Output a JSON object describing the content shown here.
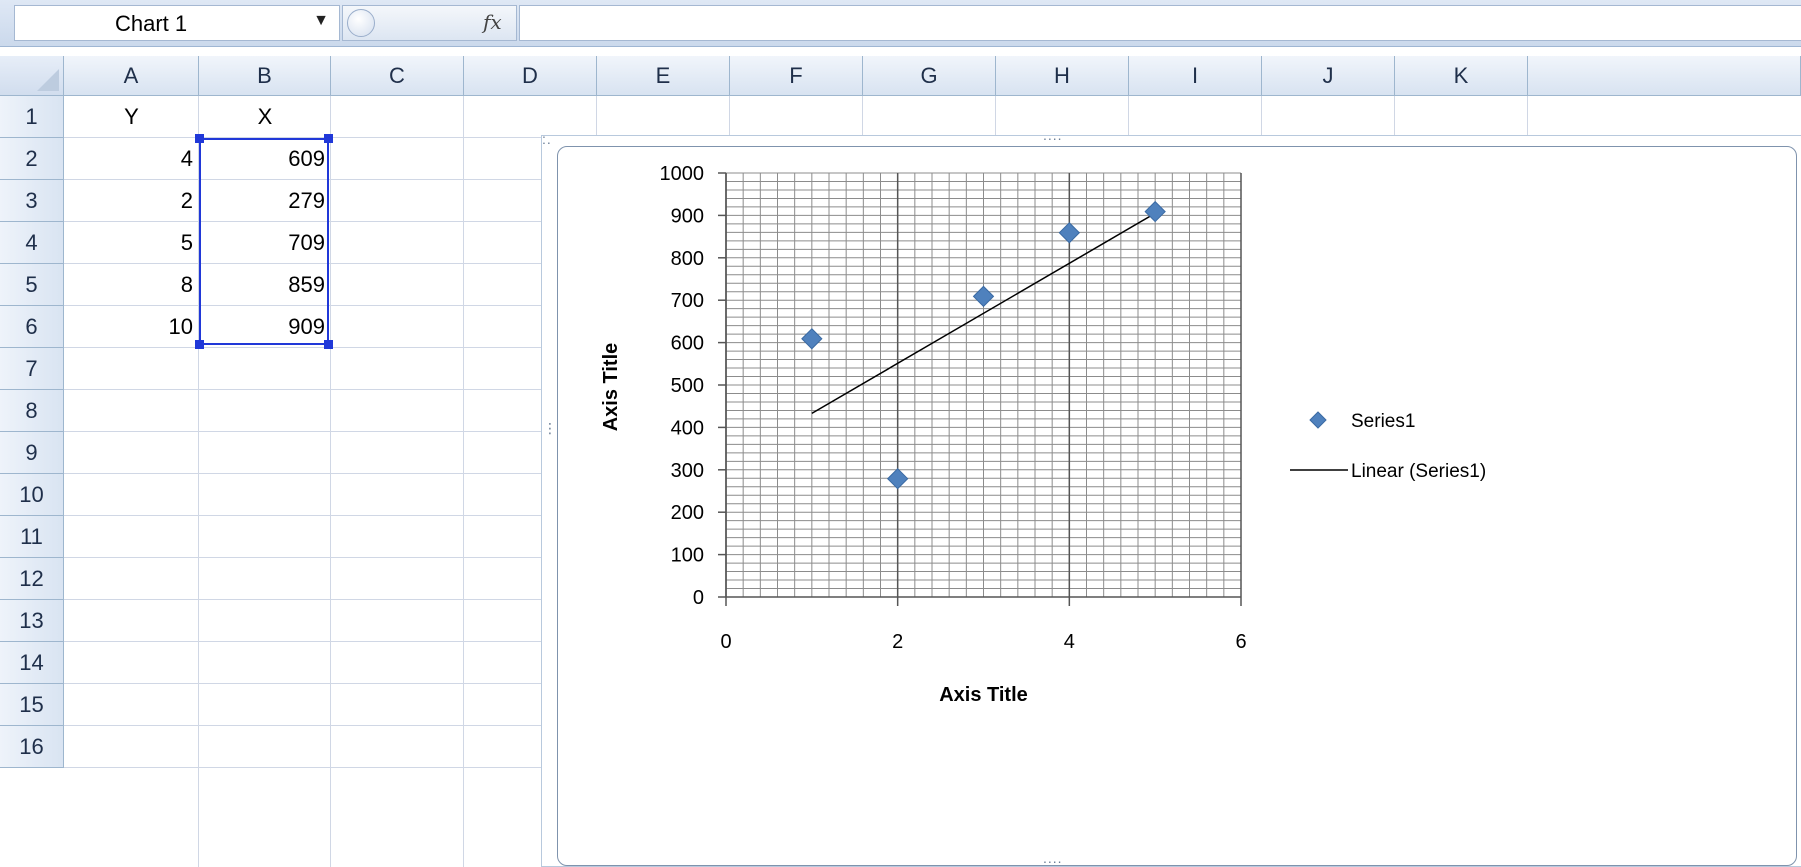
{
  "name_box": {
    "value": "Chart 1"
  },
  "formula": {
    "fx_label": "fx",
    "value": ""
  },
  "columns": [
    "A",
    "B",
    "C",
    "D",
    "E",
    "F",
    "G",
    "H",
    "I",
    "J",
    "K"
  ],
  "rows": [
    "1",
    "2",
    "3",
    "4",
    "5",
    "6",
    "7",
    "8",
    "9",
    "10",
    "11",
    "12",
    "13",
    "14",
    "15",
    "16"
  ],
  "cells": {
    "A1": "Y",
    "B1": "X",
    "A2": "4",
    "B2": "609",
    "A3": "2",
    "B3": "279",
    "A4": "5",
    "B4": "709",
    "A5": "8",
    "B5": "859",
    "A6": "10",
    "B6": "909"
  },
  "chart_data": {
    "type": "scatter",
    "xlabel": "Axis Title",
    "ylabel": "Axis Title",
    "xlim": [
      0,
      6
    ],
    "ylim": [
      0,
      1000
    ],
    "x_ticks": [
      0,
      2,
      4,
      6
    ],
    "y_ticks": [
      0,
      100,
      200,
      300,
      400,
      500,
      600,
      700,
      800,
      900,
      1000
    ],
    "grid": true,
    "legend_position": "right",
    "series": [
      {
        "name": "Series1",
        "x": [
          1,
          2,
          3,
          4,
          5
        ],
        "y": [
          609,
          279,
          709,
          859,
          909
        ],
        "color": "#4f81bd",
        "marker": "diamond"
      }
    ],
    "trendline": {
      "name": "Linear (Series1)",
      "type": "linear",
      "from": [
        1,
        433
      ],
      "to": [
        5,
        905
      ],
      "color": "#000000"
    }
  }
}
